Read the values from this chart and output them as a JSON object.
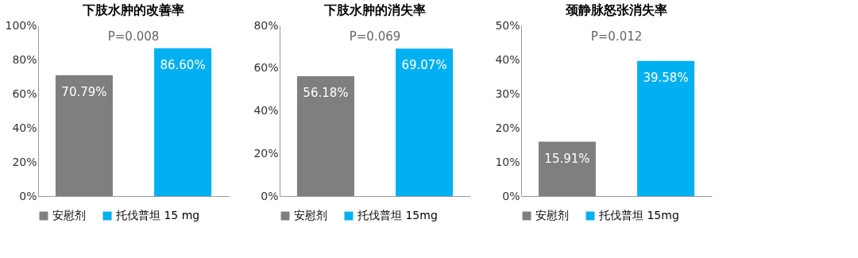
{
  "chart_data": [
    {
      "type": "bar",
      "title": "下肢水肿的改善率",
      "categories": [
        null
      ],
      "annotations": [
        "P=0.008"
      ],
      "ylim": [
        0,
        100
      ],
      "yticks": [
        {
          "value": 0,
          "label": "0%"
        },
        {
          "value": 20,
          "label": "20%"
        },
        {
          "value": 40,
          "label": "40%"
        },
        {
          "value": 60,
          "label": "60%"
        },
        {
          "value": 80,
          "label": "80%"
        },
        {
          "value": 100,
          "label": "100%"
        }
      ],
      "tick_labels": "y",
      "legend": "bottom",
      "grid": false,
      "series": [
        {
          "name": "安慰剂",
          "color": "#7f7f7f",
          "values": [
            70.79
          ],
          "value_labels": [
            "70.79%"
          ]
        },
        {
          "name": "托伐普坦 15 mg",
          "color": "#00b0f0",
          "values": [
            86.6
          ],
          "value_labels": [
            "86.60%"
          ]
        }
      ]
    },
    {
      "type": "bar",
      "title": "下肢水肿的消失率",
      "categories": [
        null
      ],
      "annotations": [
        "P=0.069"
      ],
      "ylim": [
        0,
        80
      ],
      "yticks": [
        {
          "value": 0,
          "label": "0%"
        },
        {
          "value": 20,
          "label": "20%"
        },
        {
          "value": 40,
          "label": "40%"
        },
        {
          "value": 60,
          "label": "60%"
        },
        {
          "value": 80,
          "label": "80%"
        }
      ],
      "tick_labels": "y",
      "legend": "bottom",
      "grid": false,
      "series": [
        {
          "name": "安慰剂",
          "color": "#7f7f7f",
          "values": [
            56.18
          ],
          "value_labels": [
            "56.18%"
          ]
        },
        {
          "name": "托伐普坦 15mg",
          "color": "#00b0f0",
          "values": [
            69.07
          ],
          "value_labels": [
            "69.07%"
          ]
        }
      ]
    },
    {
      "type": "bar",
      "title": "颈静脉怒张消失率",
      "categories": [
        null
      ],
      "annotations": [
        "P=0.012"
      ],
      "ylim": [
        0,
        50
      ],
      "yticks": [
        {
          "value": 0,
          "label": "0%"
        },
        {
          "value": 10,
          "label": "10%"
        },
        {
          "value": 20,
          "label": "20%"
        },
        {
          "value": 30,
          "label": "30%"
        },
        {
          "value": 40,
          "label": "40%"
        },
        {
          "value": 50,
          "label": "50%"
        }
      ],
      "tick_labels": "y",
      "legend": "bottom",
      "grid": false,
      "series": [
        {
          "name": "安慰剂",
          "color": "#7f7f7f",
          "values": [
            15.91
          ],
          "value_labels": [
            "15.91%"
          ]
        },
        {
          "name": "托伐普坦 15mg",
          "color": "#00b0f0",
          "values": [
            39.58
          ],
          "value_labels": [
            "39.58%"
          ]
        }
      ]
    }
  ]
}
